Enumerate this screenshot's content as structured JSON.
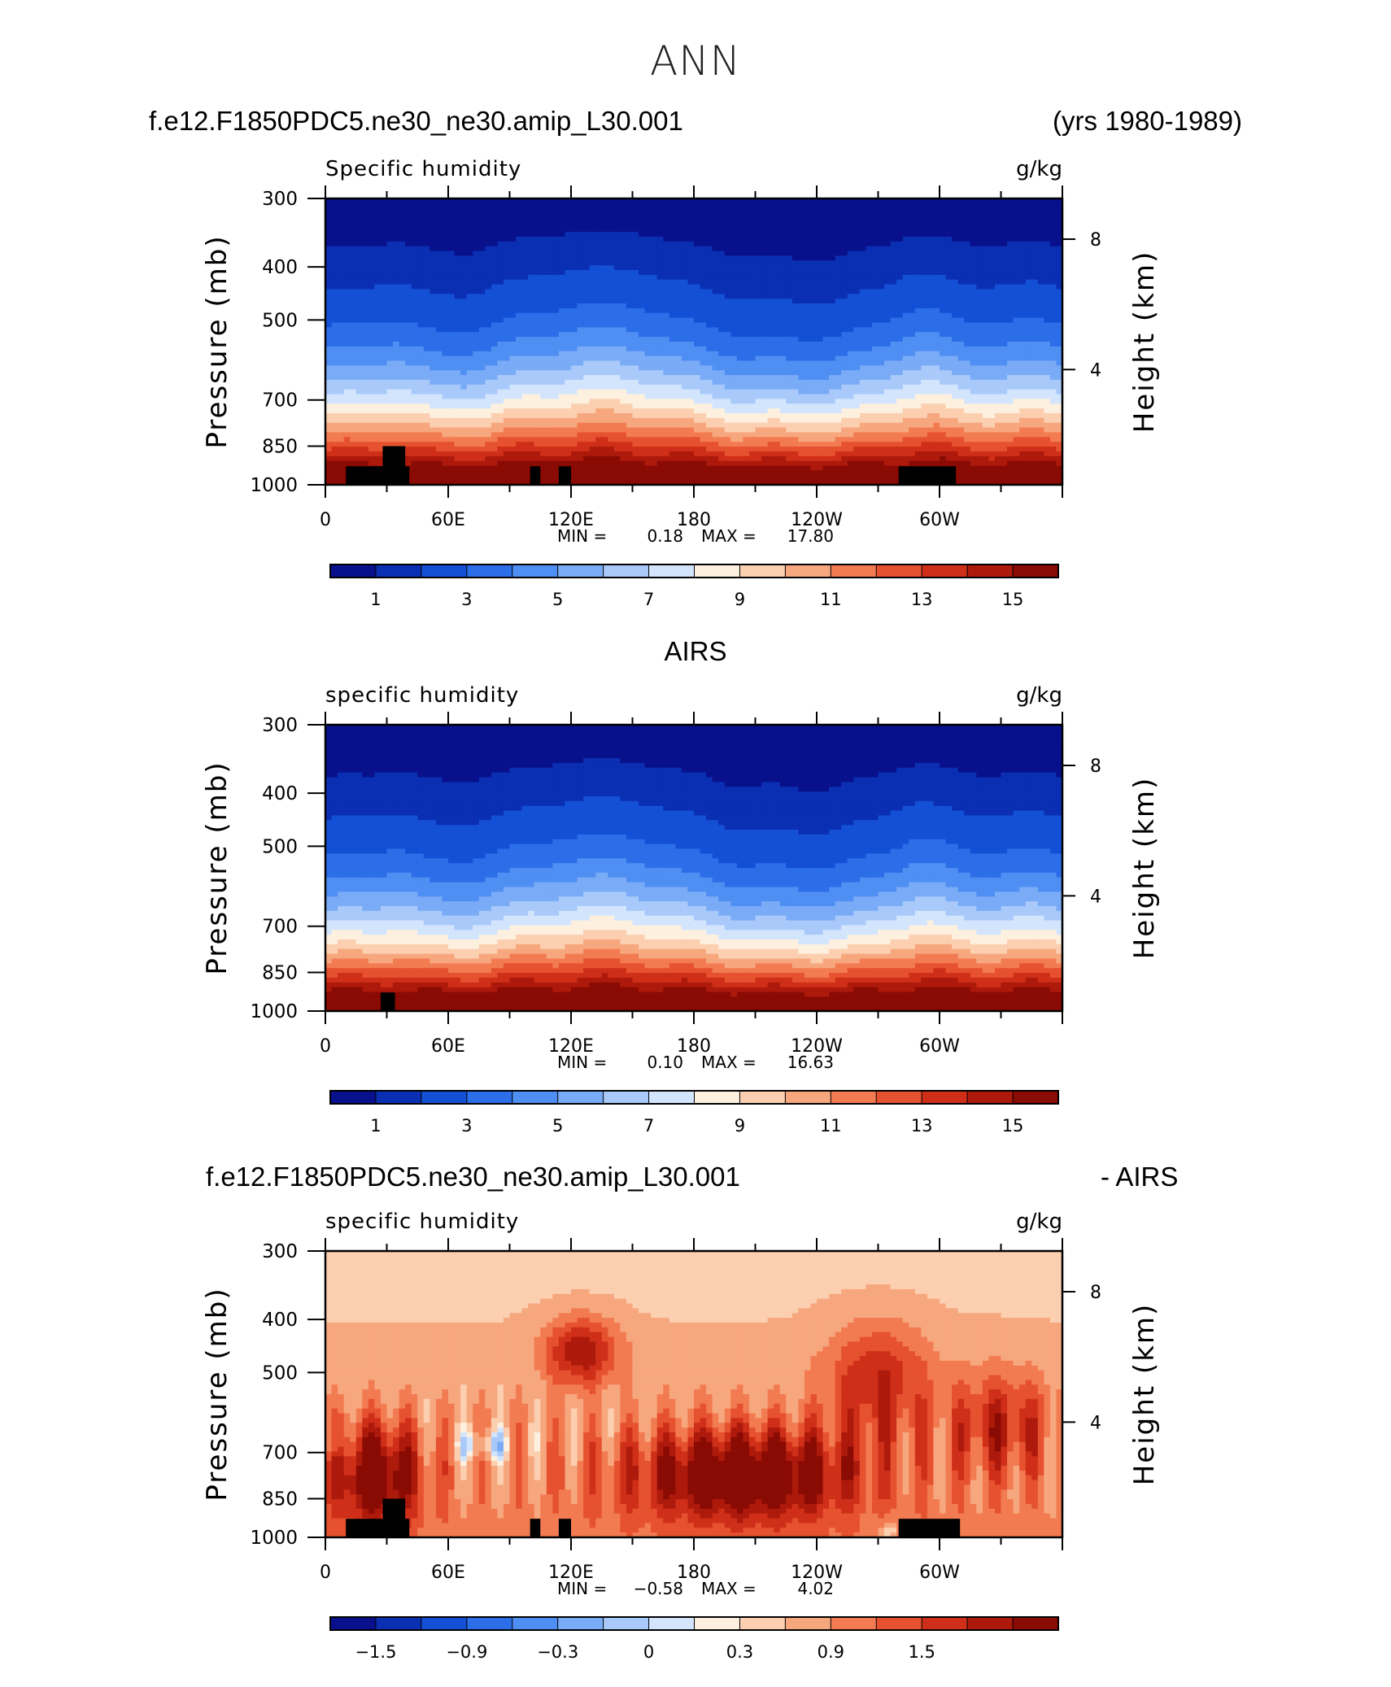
{
  "title": "ANN",
  "header": {
    "case_name": "f.e12.F1850PDC5.ne30_ne30.amip_L30.001",
    "years": "(yrs 1980-1989)"
  },
  "colors": {
    "abs_scale": [
      "#08108c",
      "#0a2fb2",
      "#1450d6",
      "#2c6de8",
      "#4f8ef2",
      "#7aabf6",
      "#a8c9fa",
      "#d3e5fd",
      "#fdf0df",
      "#fbcfb0",
      "#f7a77e",
      "#f27b52",
      "#e6512f",
      "#cf2f18",
      "#ad1a0c",
      "#8a0a04"
    ],
    "diff_scale": [
      "#08108c",
      "#0a2fb2",
      "#1450d6",
      "#2c6de8",
      "#4f8ef2",
      "#7aabf6",
      "#a8c9fa",
      "#d3e5fd",
      "#fdf0df",
      "#fbcfb0",
      "#f7a77e",
      "#f27b52",
      "#e6512f",
      "#cf2f18",
      "#ad1a0c",
      "#8a0a04"
    ],
    "land_mask": "#000000"
  },
  "panels": [
    {
      "id": "model",
      "left_title": "Specific humidity",
      "right_title": "g/kg",
      "y_axis_label": "Pressure (mb)",
      "right_axis_label": "Height (km)",
      "stats": {
        "min_label": "MIN =",
        "min_value": "0.18",
        "max_label": "MAX =",
        "max_value": "17.80"
      },
      "colorbar_labels": [
        "1",
        "3",
        "5",
        "7",
        "9",
        "11",
        "13",
        "15"
      ]
    },
    {
      "id": "obs",
      "section_title": "AIRS",
      "left_title": "specific humidity",
      "right_title": "g/kg",
      "y_axis_label": "Pressure (mb)",
      "right_axis_label": "Height (km)",
      "stats": {
        "min_label": "MIN =",
        "min_value": "0.10",
        "max_label": "MAX =",
        "max_value": "16.63"
      },
      "colorbar_labels": [
        "1",
        "3",
        "5",
        "7",
        "9",
        "11",
        "13",
        "15"
      ]
    },
    {
      "id": "diff",
      "section_title_left": "f.e12.F1850PDC5.ne30_ne30.amip_L30.001",
      "section_title_right": "- AIRS",
      "left_title": "specific humidity",
      "right_title": "g/kg",
      "y_axis_label": "Pressure (mb)",
      "right_axis_label": "Height (km)",
      "stats": {
        "min_label": "MIN =",
        "min_value": "−0.58",
        "max_label": "MAX =",
        "max_value": "4.02"
      },
      "colorbar_labels": [
        "−1.5",
        "−0.9",
        "−0.3",
        "0",
        "0.3",
        "0.9",
        "1.5"
      ]
    }
  ],
  "chart_data": [
    {
      "type": "heatmap",
      "title": "Specific humidity",
      "units": "g/kg",
      "xlabel": "",
      "ylabel": "Pressure (mb)",
      "y2label": "Height (km)",
      "x_ticklabels": [
        "0",
        "60E",
        "120E",
        "180",
        "120W",
        "60W"
      ],
      "x_tick_lon": [
        0,
        60,
        120,
        180,
        240,
        300
      ],
      "xlim": [
        0,
        360
      ],
      "y_ticklabels": [
        "300",
        "400",
        "500",
        "700",
        "850",
        "1000"
      ],
      "y_tick_values": [
        300,
        400,
        500,
        700,
        850,
        1000
      ],
      "ylim": [
        1000,
        300
      ],
      "y_scale": "log",
      "y2_ticklabels": [
        "8",
        "4"
      ],
      "y2_tick_values": [
        8,
        4
      ],
      "color_levels": [
        0.5,
        1,
        2,
        3,
        4,
        5,
        6,
        7,
        8,
        9,
        10,
        11,
        12,
        13,
        14,
        15
      ],
      "min": 0.18,
      "max": 17.8,
      "land_blocks": [
        {
          "lon0": 10,
          "lon1": 41,
          "p_top": 925
        },
        {
          "lon0": 28,
          "lon1": 39,
          "p_top": 850
        },
        {
          "lon0": 100,
          "lon1": 105,
          "p_top": 925
        },
        {
          "lon0": 114,
          "lon1": 120,
          "p_top": 925
        },
        {
          "lon0": 280,
          "lon1": 308,
          "p_top": 925
        }
      ]
    },
    {
      "type": "heatmap",
      "title": "specific humidity",
      "units": "g/kg",
      "xlabel": "",
      "ylabel": "Pressure (mb)",
      "y2label": "Height (km)",
      "x_ticklabels": [
        "0",
        "60E",
        "120E",
        "180",
        "120W",
        "60W"
      ],
      "x_tick_lon": [
        0,
        60,
        120,
        180,
        240,
        300
      ],
      "xlim": [
        0,
        360
      ],
      "y_ticklabels": [
        "300",
        "400",
        "500",
        "700",
        "850",
        "1000"
      ],
      "y_tick_values": [
        300,
        400,
        500,
        700,
        850,
        1000
      ],
      "ylim": [
        1000,
        300
      ],
      "y_scale": "log",
      "y2_ticklabels": [
        "8",
        "4"
      ],
      "y2_tick_values": [
        8,
        4
      ],
      "color_levels": [
        0.5,
        1,
        2,
        3,
        4,
        5,
        6,
        7,
        8,
        9,
        10,
        11,
        12,
        13,
        14,
        15
      ],
      "min": 0.1,
      "max": 16.63,
      "land_blocks": [
        {
          "lon0": 27,
          "lon1": 34,
          "p_top": 925
        }
      ]
    },
    {
      "type": "heatmap",
      "title": "specific humidity",
      "units": "g/kg",
      "xlabel": "",
      "ylabel": "Pressure (mb)",
      "y2label": "Height (km)",
      "x_ticklabels": [
        "0",
        "60E",
        "120E",
        "180",
        "120W",
        "60W"
      ],
      "x_tick_lon": [
        0,
        60,
        120,
        180,
        240,
        300
      ],
      "xlim": [
        0,
        360
      ],
      "y_ticklabels": [
        "300",
        "400",
        "500",
        "700",
        "850",
        "1000"
      ],
      "y_tick_values": [
        300,
        400,
        500,
        700,
        850,
        1000
      ],
      "ylim": [
        1000,
        300
      ],
      "y_scale": "log",
      "y2_ticklabels": [
        "8",
        "4"
      ],
      "y2_tick_values": [
        8,
        4
      ],
      "color_levels": [
        -1.8,
        -1.5,
        -1.2,
        -0.9,
        -0.6,
        -0.3,
        -0.1,
        0,
        0.1,
        0.3,
        0.6,
        0.9,
        1.2,
        1.5,
        1.8
      ],
      "min": -0.58,
      "max": 4.02,
      "land_blocks": [
        {
          "lon0": 10,
          "lon1": 41,
          "p_top": 925
        },
        {
          "lon0": 28,
          "lon1": 39,
          "p_top": 850
        },
        {
          "lon0": 100,
          "lon1": 105,
          "p_top": 925
        },
        {
          "lon0": 114,
          "lon1": 120,
          "p_top": 925
        },
        {
          "lon0": 280,
          "lon1": 310,
          "p_top": 925
        }
      ]
    }
  ]
}
